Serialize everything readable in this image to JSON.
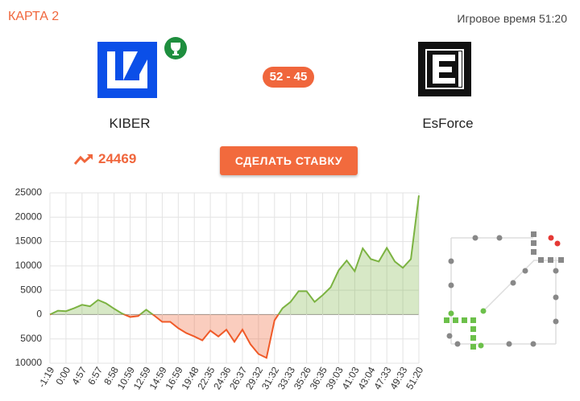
{
  "header": {
    "map": "КАРТА 2",
    "game_time": "Игровое время 51:20"
  },
  "teams": [
    {
      "name": "KIBER"
    },
    {
      "name": "EsForce"
    }
  ],
  "score": "52 - 45",
  "rating": 24469,
  "button": "СДЕЛАТЬ СТАВКУ",
  "chart_data": {
    "type": "area",
    "categories": [
      "-1:19",
      null,
      "0:00",
      null,
      "4:57",
      null,
      "6:57",
      null,
      "8:58",
      null,
      "10:59",
      null,
      "12:59",
      null,
      "14:59",
      null,
      "16:59",
      null,
      "19:48",
      null,
      "22:35",
      null,
      "24:36",
      null,
      "26:37",
      null,
      "29:32",
      null,
      "31:32",
      null,
      "33:33",
      null,
      "35:26",
      null,
      "36:35",
      null,
      "39:03",
      null,
      "41:03",
      null,
      "43:04",
      null,
      "47:33",
      null,
      "49:33",
      null,
      "51:20"
    ],
    "series": [
      {
        "color": "#7cb342",
        "negative_color": "#f05a28",
        "values": [
          0,
          800,
          700,
          1300,
          2000,
          1700,
          3000,
          2300,
          1200,
          200,
          -500,
          -300,
          1000,
          -200,
          -1500,
          -1500,
          -2800,
          -3800,
          -4500,
          -5300,
          -3300,
          -4500,
          -3100,
          -5600,
          -3100,
          -6100,
          -8100,
          -8900,
          -1200,
          1300,
          2600,
          4800,
          4800,
          2600,
          4000,
          5600,
          9100,
          11100,
          8900,
          13600,
          11400,
          10900,
          13700,
          10900,
          9600,
          11400,
          24469
        ]
      }
    ],
    "ylim": [
      -10000,
      25000
    ],
    "yticks": [
      {
        "value": -10000,
        "label": "10000"
      },
      {
        "value": -5000,
        "label": "5000"
      },
      0,
      5000,
      10000,
      15000,
      20000,
      25000
    ],
    "grid": true
  }
}
